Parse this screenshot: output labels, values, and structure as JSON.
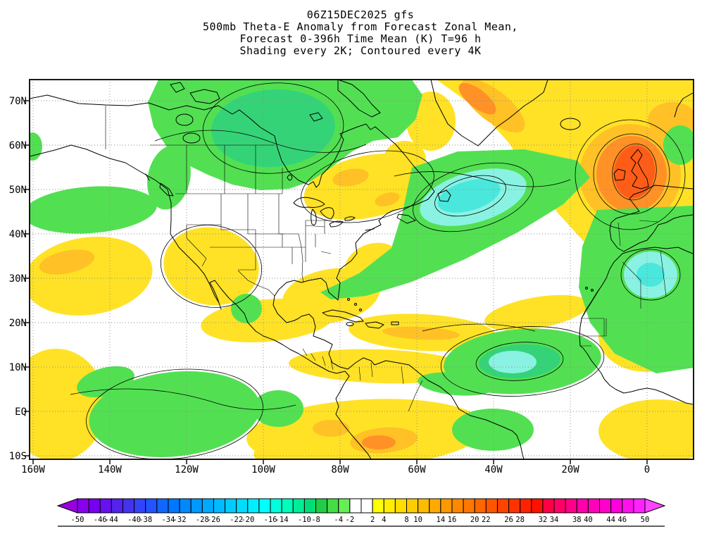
{
  "title": {
    "line1": "06Z15DEC2025 gfs",
    "line2": "500mb Theta-E Anomaly from Forecast Zonal Mean,",
    "line3": "Forecast 0-396h Time Mean (K) T=96 h",
    "line4": "Shading every 2K; Contoured every 4K"
  },
  "map": {
    "lat_labels": [
      "70N",
      "60N",
      "50N",
      "40N",
      "30N",
      "20N",
      "10N",
      "EQ",
      "10S"
    ],
    "lon_labels": [
      "160W",
      "140W",
      "120W",
      "100W",
      "80W",
      "60W",
      "40W",
      "20W",
      "0"
    ]
  },
  "palette": {
    "map_yellow": "#ffe226",
    "map_yellow2": "#ffc126",
    "map_orange": "#ff9126",
    "map_orange2": "#ff5d17",
    "map_green": "#52e052",
    "map_green2": "#35d377",
    "map_cyan": "#8af2e2",
    "map_cyan2": "#4ae8dc"
  },
  "colorbar": {
    "labels": [
      "-50",
      "-46",
      "-44",
      "-40",
      "-38",
      "-34",
      "-32",
      "-28",
      "-26",
      "-22",
      "-20",
      "-16",
      "-14",
      "-10",
      "-8",
      "-4",
      "-2",
      "2",
      "4",
      "8",
      "10",
      "14",
      "16",
      "20",
      "22",
      "26",
      "28",
      "32",
      "34",
      "38",
      "40",
      "44",
      "46",
      "50"
    ],
    "colors": [
      "#9900dd",
      "#8800ee",
      "#7700ee",
      "#6611ee",
      "#5522ee",
      "#4433ee",
      "#3344ff",
      "#2255ff",
      "#1166ff",
      "#0077ff",
      "#0088ff",
      "#0099ff",
      "#00aaff",
      "#00bbff",
      "#00ccff",
      "#00ddff",
      "#00eeff",
      "#00ffff",
      "#00ffdd",
      "#00ffbb",
      "#00ee99",
      "#00dd77",
      "#22cc44",
      "#44dd44",
      "#66ee55",
      "#ffffff",
      "#ffffff",
      "#ffff00",
      "#ffee00",
      "#ffdd00",
      "#ffcc00",
      "#ffbb00",
      "#ffaa00",
      "#ff9900",
      "#ff8800",
      "#ff7700",
      "#ff6600",
      "#ff5500",
      "#ff4400",
      "#ff3300",
      "#ff2200",
      "#ff1100",
      "#ff0044",
      "#ff0066",
      "#ff0088",
      "#ff00aa",
      "#ff00bb",
      "#ff00cc",
      "#ff00dd",
      "#ff11ee",
      "#ff22ff",
      "#ff44ff"
    ]
  }
}
